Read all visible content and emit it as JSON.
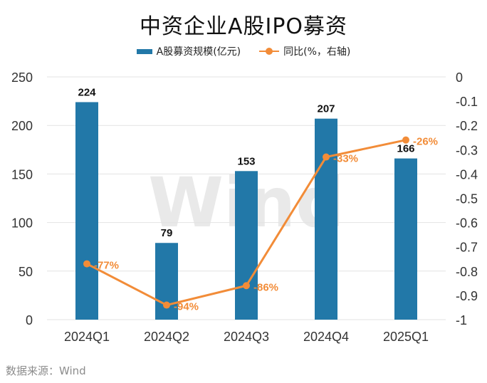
{
  "chart_data": {
    "type": "bar",
    "title": "中资企业A股IPO募资",
    "categories": [
      "2024Q1",
      "2024Q2",
      "2024Q3",
      "2024Q4",
      "2025Q1"
    ],
    "series": [
      {
        "name": "A股募资规模(亿元)",
        "type": "bar",
        "axis": "left",
        "color": "#2278A8",
        "values": [
          224,
          79,
          153,
          207,
          166
        ],
        "labels": [
          "224",
          "79",
          "153",
          "207",
          "166"
        ]
      },
      {
        "name": "同比(%，右轴)",
        "type": "line",
        "axis": "right",
        "color": "#F28C38",
        "values": [
          -0.77,
          -0.94,
          -0.86,
          -0.33,
          -0.26
        ],
        "labels": [
          "-77%",
          "-94%",
          "-86%",
          "-33%",
          "-26%"
        ]
      }
    ],
    "y_left": {
      "lim": [
        0,
        250
      ],
      "ticks": [
        "0",
        "50",
        "100",
        "150",
        "200",
        "250"
      ]
    },
    "y_right": {
      "lim": [
        -1,
        0
      ],
      "ticks": [
        "0",
        "-0.1",
        "-0.2",
        "-0.3",
        "-0.4",
        "-0.5",
        "-0.6",
        "-0.7",
        "-0.8",
        "-0.9",
        "-1"
      ]
    },
    "xlabel": "",
    "ylabel": "",
    "grid": true,
    "legend": "top-center"
  },
  "watermark": "Wind",
  "source": "数据来源：Wind"
}
